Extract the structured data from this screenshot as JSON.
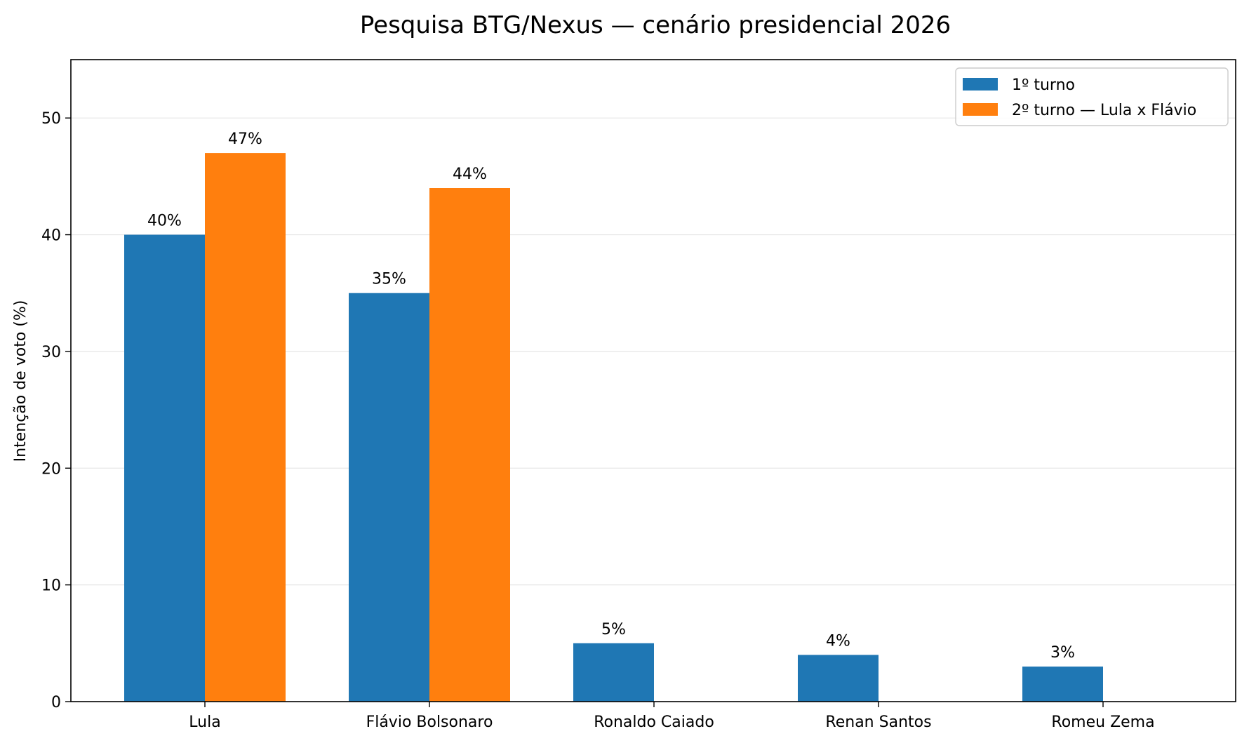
{
  "chart_data": {
    "type": "bar",
    "title": "Pesquisa BTG/Nexus — cenário presidencial 2026",
    "xlabel": "",
    "ylabel": "Intenção de voto (%)",
    "ylim": [
      0,
      55
    ],
    "yticks": [
      0,
      10,
      20,
      30,
      40,
      50
    ],
    "grid": "horizontal",
    "legend_position": "top-right",
    "categories": [
      "Lula",
      "Flávio Bolsonaro",
      "Ronaldo Caiado",
      "Renan Santos",
      "Romeu Zema"
    ],
    "series": [
      {
        "name": "1º turno",
        "color": "#1f77b4",
        "values": [
          40,
          35,
          5,
          4,
          3
        ],
        "labels": [
          "40%",
          "35%",
          "5%",
          "4%",
          "3%"
        ]
      },
      {
        "name": "2º turno — Lula x Flávio",
        "color": "#ff7f0e",
        "values": [
          47,
          44,
          null,
          null,
          null
        ],
        "labels": [
          "47%",
          "44%",
          null,
          null,
          null
        ]
      }
    ]
  }
}
